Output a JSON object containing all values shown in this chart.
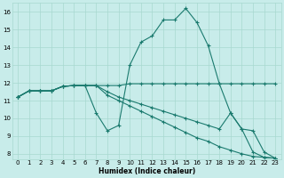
{
  "xlabel": "Humidex (Indice chaleur)",
  "bg_color": "#c8ecea",
  "grid_color": "#a8d8d0",
  "line_color": "#1a7a6e",
  "xlim": [
    -0.5,
    23.5
  ],
  "ylim": [
    7.7,
    16.5
  ],
  "xticks": [
    0,
    1,
    2,
    3,
    4,
    5,
    6,
    7,
    8,
    9,
    10,
    11,
    12,
    13,
    14,
    15,
    16,
    17,
    18,
    19,
    20,
    21,
    22,
    23
  ],
  "yticks": [
    8,
    9,
    10,
    11,
    12,
    13,
    14,
    15,
    16
  ],
  "line1_x": [
    0,
    1,
    2,
    3,
    4,
    5,
    6,
    7,
    8,
    9,
    10,
    11,
    12,
    13,
    14,
    15,
    16,
    17,
    18,
    19,
    20,
    21,
    22,
    23
  ],
  "line1_y": [
    11.2,
    11.55,
    11.55,
    11.55,
    11.8,
    11.85,
    11.85,
    10.3,
    9.3,
    9.6,
    13.0,
    14.3,
    14.65,
    15.55,
    15.55,
    16.2,
    15.4,
    14.1,
    11.95,
    10.3,
    9.4,
    8.1,
    7.8,
    7.75
  ],
  "line2_x": [
    0,
    1,
    2,
    3,
    4,
    5,
    6,
    7,
    8,
    9,
    10,
    11,
    12,
    13,
    14,
    15,
    16,
    17,
    18,
    19,
    20,
    21,
    22,
    23
  ],
  "line2_y": [
    11.2,
    11.55,
    11.55,
    11.55,
    11.8,
    11.85,
    11.85,
    11.85,
    11.85,
    11.85,
    11.95,
    11.95,
    11.95,
    11.95,
    11.95,
    11.95,
    11.95,
    11.95,
    11.95,
    11.95,
    11.95,
    11.95,
    11.95,
    11.95
  ],
  "line3_x": [
    0,
    1,
    2,
    3,
    4,
    5,
    6,
    7,
    8,
    9,
    10,
    11,
    12,
    13,
    14,
    15,
    16,
    17,
    18,
    19,
    20,
    21,
    22,
    23
  ],
  "line3_y": [
    11.2,
    11.55,
    11.55,
    11.55,
    11.8,
    11.85,
    11.85,
    11.85,
    11.5,
    11.2,
    11.0,
    10.8,
    10.6,
    10.4,
    10.2,
    10.0,
    9.8,
    9.6,
    9.4,
    10.3,
    9.4,
    9.3,
    8.1,
    7.75
  ],
  "line4_x": [
    0,
    1,
    2,
    3,
    4,
    5,
    6,
    7,
    8,
    9,
    10,
    11,
    12,
    13,
    14,
    15,
    16,
    17,
    18,
    19,
    20,
    21,
    22,
    23
  ],
  "line4_y": [
    11.2,
    11.55,
    11.55,
    11.55,
    11.8,
    11.85,
    11.85,
    11.85,
    11.3,
    11.0,
    10.7,
    10.4,
    10.1,
    9.8,
    9.5,
    9.2,
    8.9,
    8.7,
    8.4,
    8.2,
    8.0,
    7.85,
    7.8,
    7.75
  ]
}
